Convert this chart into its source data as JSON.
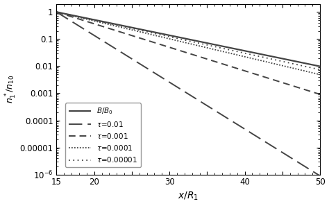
{
  "x_start": 15,
  "x_end": 50,
  "xlim": [
    15,
    50
  ],
  "ylim": [
    1e-06,
    2
  ],
  "xlabel": "$x/R_1$",
  "ylabel": "$n_1^*/n_{10}$",
  "background_color": "#ffffff",
  "lines": [
    {
      "label": "$B/B_0$",
      "style": "solid",
      "color": "#444444",
      "linewidth": 1.6,
      "k": 0.132
    },
    {
      "label": "$\\tau$=0.01",
      "style": "dashed_long",
      "color": "#444444",
      "linewidth": 1.4,
      "k": 0.398
    },
    {
      "label": "$\\tau$=0.001",
      "style": "dashed",
      "color": "#444444",
      "linewidth": 1.4,
      "k": 0.2
    },
    {
      "label": "$\\tau$=0.0001",
      "style": "dotted_dense",
      "color": "#444444",
      "linewidth": 1.3,
      "k": 0.152
    },
    {
      "label": "$\\tau$=0.00001",
      "style": "dotted",
      "color": "#444444",
      "linewidth": 1.3,
      "k": 0.14
    }
  ],
  "legend_loc": "lower left",
  "title": ""
}
